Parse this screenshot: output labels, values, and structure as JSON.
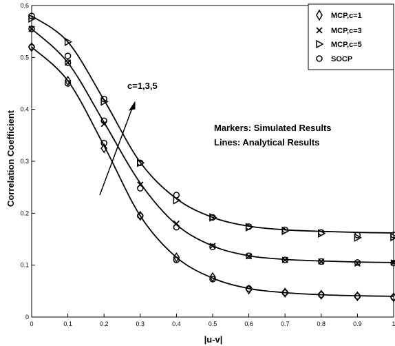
{
  "chart_data": {
    "type": "line",
    "xlabel": "|u-v|",
    "ylabel": "Correlation Coefficient",
    "xlim": [
      0,
      1
    ],
    "ylim": [
      0,
      0.6
    ],
    "x_ticks": [
      "0",
      "0.1",
      "0.2",
      "0.3",
      "0.4",
      "0.5",
      "0.6",
      "0.7",
      "0.8",
      "0.9",
      "1"
    ],
    "y_ticks": [
      "0",
      "0.1",
      "0.2",
      "0.3",
      "0.4",
      "0.5",
      "0.6"
    ],
    "legend_position": "top-right",
    "grid": false,
    "x": [
      0,
      0.1,
      0.2,
      0.3,
      0.4,
      0.5,
      0.6,
      0.7,
      0.8,
      0.9,
      1
    ],
    "lines": [
      {
        "values": [
          0.52,
          0.455,
          0.33,
          0.195,
          0.115,
          0.075,
          0.055,
          0.047,
          0.043,
          0.041,
          0.04
        ]
      },
      {
        "values": [
          0.555,
          0.49,
          0.375,
          0.258,
          0.178,
          0.137,
          0.118,
          0.111,
          0.108,
          0.106,
          0.105
        ]
      },
      {
        "values": [
          0.58,
          0.53,
          0.418,
          0.298,
          0.228,
          0.192,
          0.175,
          0.168,
          0.165,
          0.163,
          0.162
        ]
      }
    ],
    "series": [
      {
        "name": "MCP,c=1",
        "marker": "diamond",
        "values": [
          0.52,
          0.455,
          0.325,
          0.195,
          0.115,
          0.077,
          0.053,
          0.047,
          0.043,
          0.04,
          0.038
        ]
      },
      {
        "name": "MCP,c=3",
        "marker": "x",
        "values": [
          0.555,
          0.49,
          0.372,
          0.255,
          0.18,
          0.137,
          0.117,
          0.11,
          0.107,
          0.103,
          0.105
        ]
      },
      {
        "name": "MCP,c=5",
        "marker": "triangle-right",
        "values": [
          0.575,
          0.53,
          0.415,
          0.297,
          0.225,
          0.192,
          0.173,
          0.166,
          0.161,
          0.153,
          0.154
        ]
      },
      {
        "name": "SOCP",
        "marker": "circle",
        "values": [
          0.52,
          0.45,
          0.335,
          0.195,
          0.11,
          0.073,
          0.055,
          0.047,
          0.043,
          0.04,
          0.038
        ],
        "values_upper": [
          0.58,
          0.503,
          0.42,
          0.297,
          0.235,
          0.192,
          0.174,
          0.168,
          0.163,
          0.158,
          0.158
        ],
        "values_mid": [
          0.555,
          0.49,
          0.378,
          0.248,
          0.173,
          0.135,
          0.118,
          0.11,
          0.107,
          0.105,
          0.104
        ]
      }
    ],
    "annotations": {
      "arrow_label": "c=1,3,5",
      "note_line1": "Markers: Simulated Results",
      "note_line2": "Lines: Analytical Results"
    }
  }
}
